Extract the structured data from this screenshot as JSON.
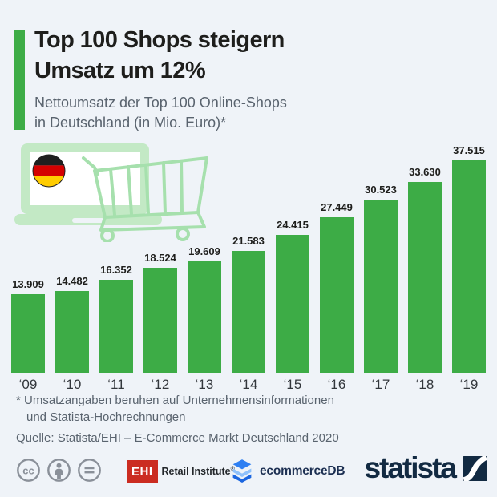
{
  "header": {
    "title_line1": "Top 100 Shops steigern",
    "title_line2": "Umsatz um 12%",
    "subtitle_line1": "Nettoumsatz der Top 100 Online-Shops",
    "subtitle_line2": "in Deutschland (in Mio. Euro)*"
  },
  "chart_data": {
    "type": "bar",
    "title": "Top 100 Shops steigern Umsatz um 12%",
    "subtitle": "Nettoumsatz der Top 100 Online-Shops in Deutschland (in Mio. Euro)*",
    "categories": [
      "‘09",
      "‘10",
      "‘11",
      "‘12",
      "‘13",
      "‘14",
      "‘15",
      "‘16",
      "‘17",
      "‘18",
      "‘19"
    ],
    "values": [
      13909,
      14482,
      16352,
      18524,
      19609,
      21583,
      24415,
      27449,
      30523,
      33630,
      37515
    ],
    "value_labels": [
      "13.909",
      "14.482",
      "16.352",
      "18.524",
      "19.609",
      "21.583",
      "24.415",
      "27.449",
      "30.523",
      "33.630",
      "37.515"
    ],
    "unit": "Mio. Euro",
    "ylim": [
      0,
      38000
    ],
    "grid": false,
    "legend": false,
    "bar_color": "#3dac46"
  },
  "illustration": {
    "description": "laptop-with-german-flag-and-shopping-cart"
  },
  "footnotes": {
    "note_line1": "* Umsatzangaben beruhen auf Unternehmensinformationen",
    "note_line2": "und Statista-Hochrechnungen",
    "source": "Quelle: Statista/EHI – E-Commerce Markt Deutschland 2020"
  },
  "footer": {
    "license_icons": [
      "cc-icon",
      "attribution-icon",
      "no-derivatives-icon"
    ],
    "ehi": {
      "box": "EHI",
      "text": "Retail Institute",
      "reg": "®"
    },
    "ecommercedb": {
      "label": "ecommerceDB"
    },
    "statista": {
      "label": "statista"
    }
  },
  "colors": {
    "background": "#eff3f8",
    "bar_green": "#3dac46",
    "title_text": "#1e1e1c",
    "gray_text": "#59636e",
    "statista_navy": "#122a42",
    "ehi_red": "#cb2c21",
    "ecdb_blue": "#2e7ff2",
    "ecdb_blue_light": "#8fc1fb",
    "ecdb_blue_dark": "#1b66e0",
    "license_gray": "#8a9099",
    "illustration_fill": "#c3e9c5",
    "illustration_line": "#a6e0ad",
    "flag_black": "#1f1f1f",
    "flag_red": "#d40000",
    "flag_gold": "#ffcc00"
  }
}
